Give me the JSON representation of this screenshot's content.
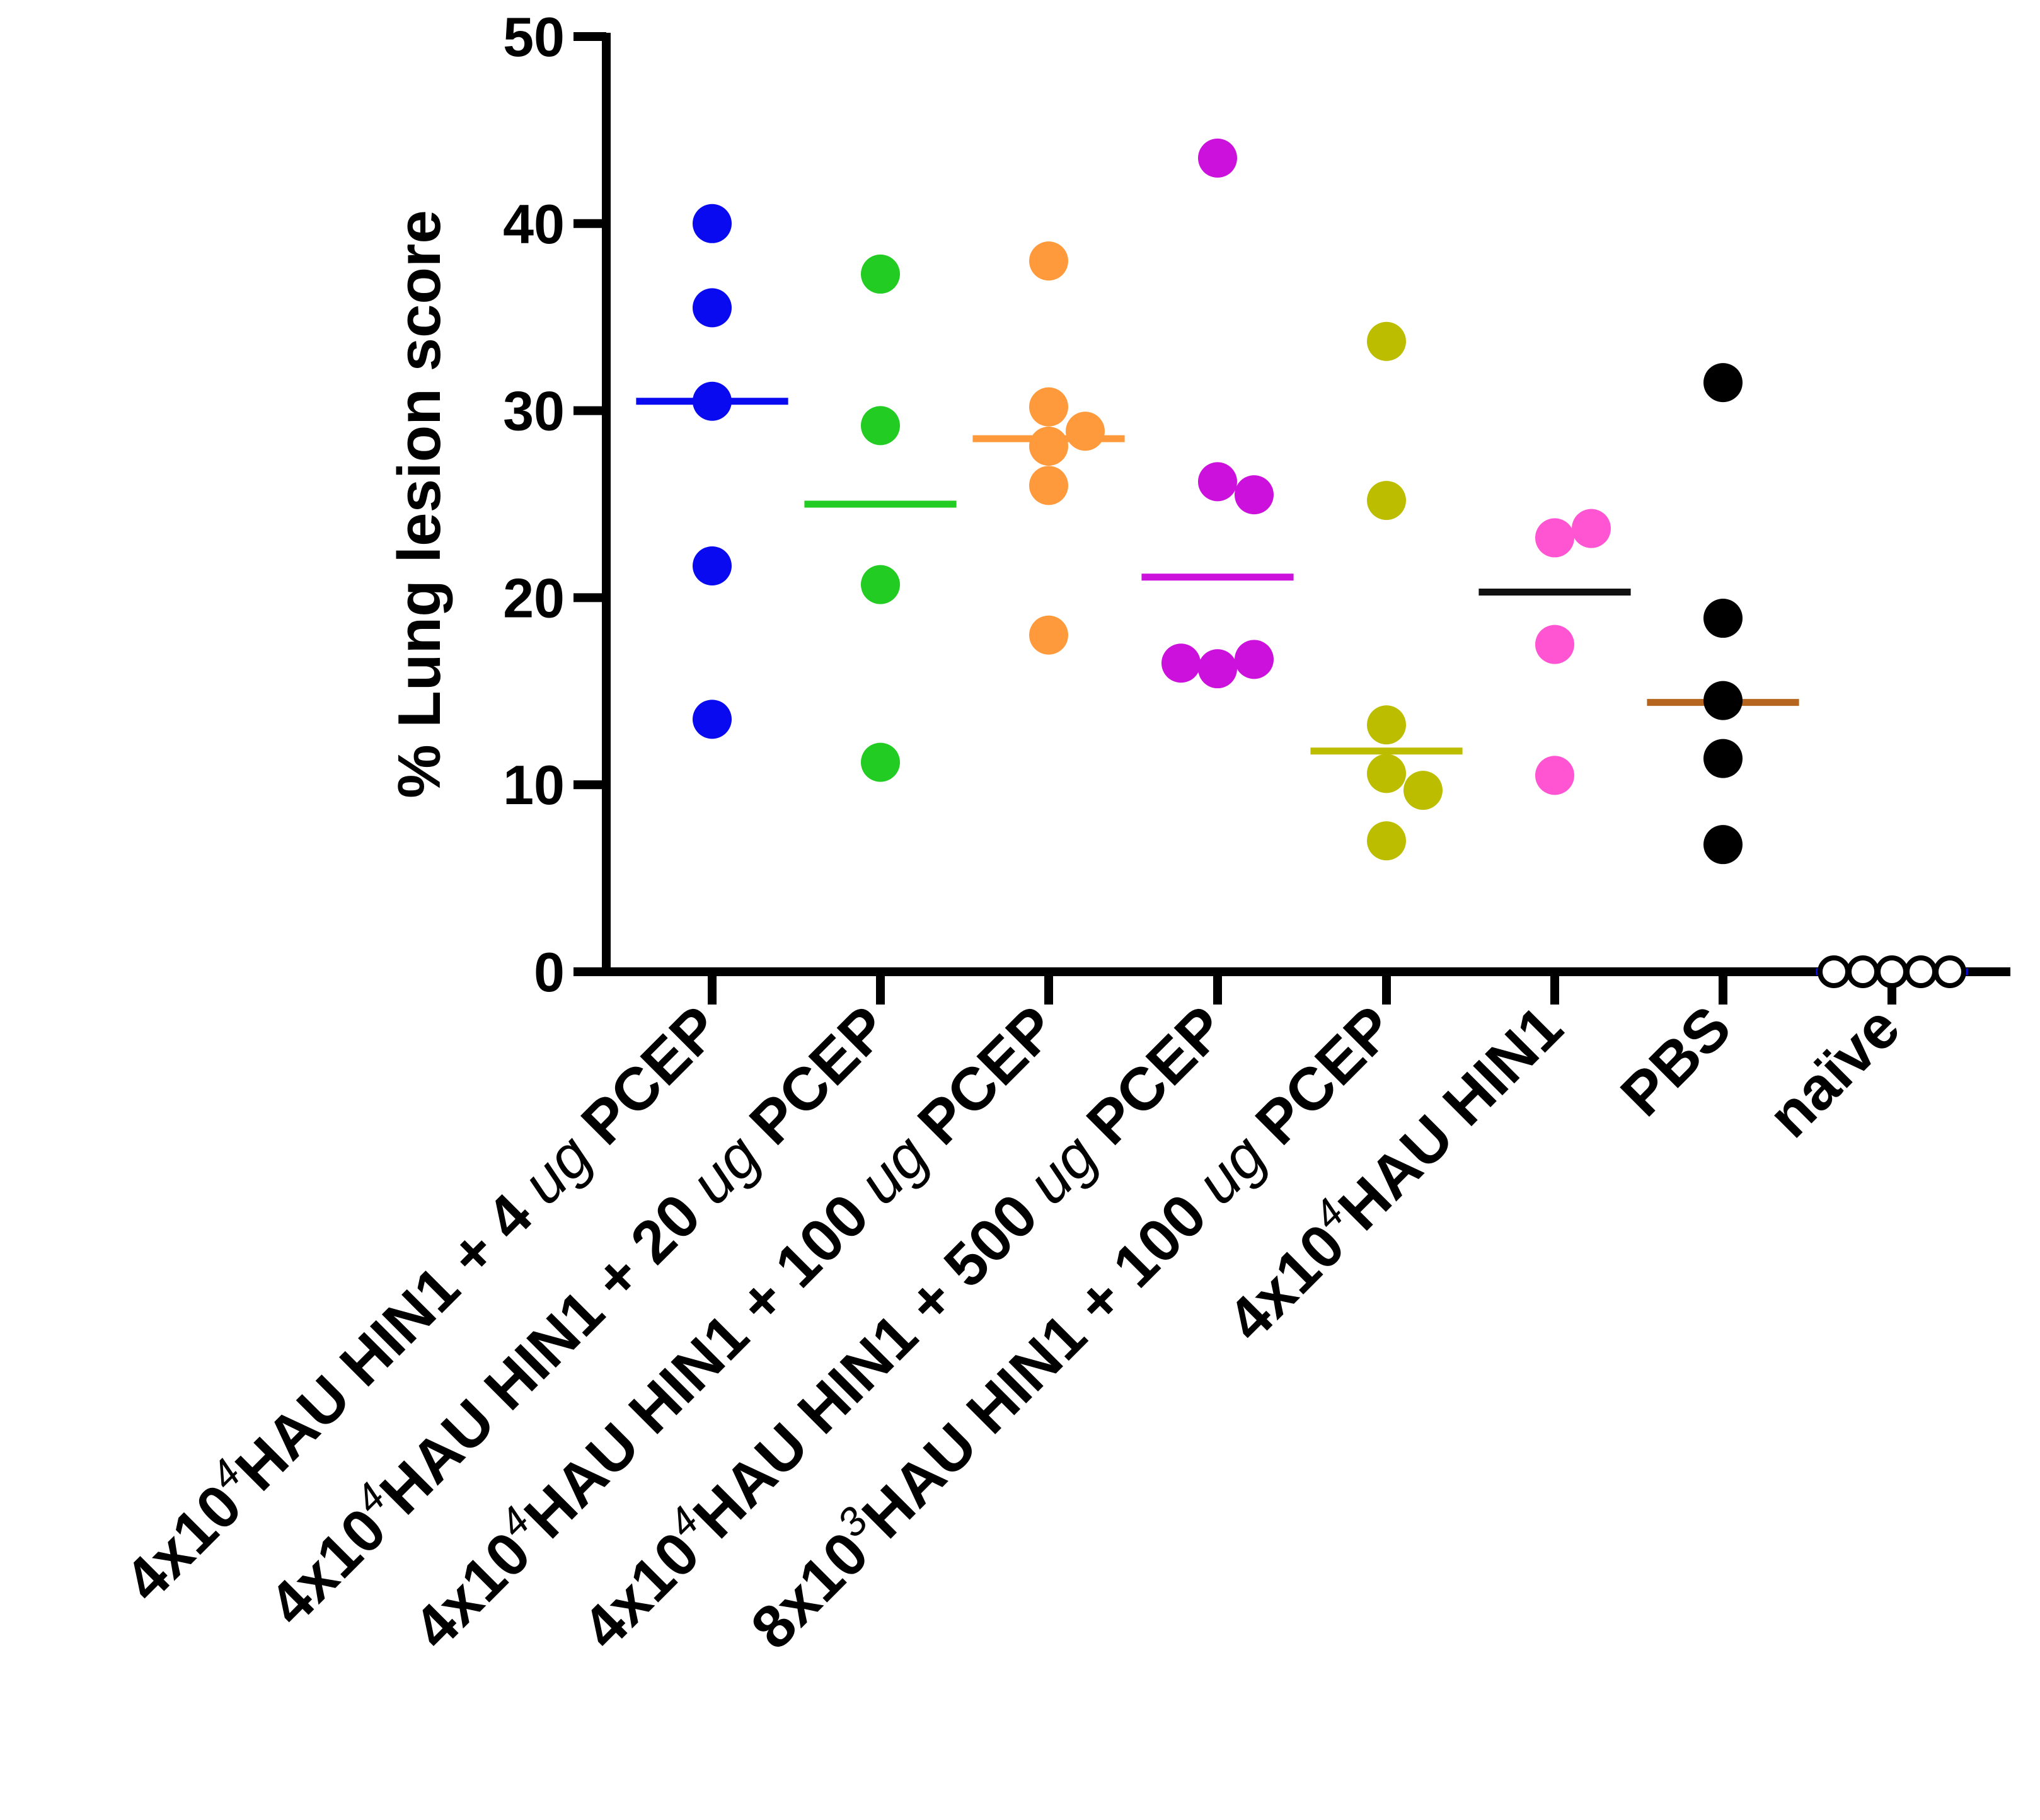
{
  "chart_data": {
    "type": "scatter",
    "ylabel": "% Lung lesion score",
    "xlabel": "",
    "ylim": [
      0,
      50
    ],
    "yticks": [
      0,
      10,
      20,
      30,
      40,
      50
    ],
    "grid": false,
    "categories": [
      {
        "prefix": "4x10",
        "sup": "4",
        "mid": "HAU HIN1 + 4 ",
        "unit": "ug",
        "suffix": " PCEP"
      },
      {
        "prefix": "4x10",
        "sup": "4",
        "mid": "HAU HIN1 + 20 ",
        "unit": "ug",
        "suffix": " PCEP"
      },
      {
        "prefix": "4x10",
        "sup": "4",
        "mid": "HAU HIN1 + 100 ",
        "unit": "ug",
        "suffix": " PCEP"
      },
      {
        "prefix": "4x10",
        "sup": "4",
        "mid": "HAU HIN1 + 500 ",
        "unit": "ug",
        "suffix": " PCEP"
      },
      {
        "prefix": "8x10",
        "sup": "3",
        "mid": "HAU HIN1 + 100 ",
        "unit": "ug",
        "suffix": " PCEP"
      },
      {
        "prefix": "4x10",
        "sup": "4",
        "mid": "HAU HIN1",
        "unit": "",
        "suffix": ""
      },
      {
        "prefix": "PBS",
        "sup": "",
        "mid": "",
        "unit": "",
        "suffix": ""
      },
      {
        "prefix": "naïve",
        "sup": "",
        "mid": "",
        "unit": "",
        "suffix": ""
      }
    ],
    "series": [
      {
        "name": "4x10^4 HAU HIN1 + 4 ug PCEP",
        "color": "#0a0af0",
        "mean_color": "#0a0af0",
        "hollow": false,
        "values": [
          40.0,
          35.5,
          30.5,
          21.7,
          13.5
        ],
        "mean": 30.5
      },
      {
        "name": "4x10^4 HAU HIN1 + 20 ug PCEP",
        "color": "#22cc22",
        "mean_color": "#22cc22",
        "hollow": false,
        "values": [
          37.3,
          29.2,
          20.7,
          11.2
        ],
        "mean": 25.0
      },
      {
        "name": "4x10^4 HAU HIN1 + 100 ug PCEP",
        "color": "#ff9a3c",
        "mean_color": "#ff9a3c",
        "hollow": false,
        "values": [
          38.0,
          30.2,
          28.1,
          28.9,
          26.0,
          18.0
        ],
        "mean": 28.5
      },
      {
        "name": "4x10^4 HAU HIN1 + 500 ug PCEP",
        "color": "#cc11dd",
        "mean_color": "#cc11dd",
        "hollow": false,
        "values": [
          43.5,
          26.2,
          25.5,
          16.2,
          16.7,
          16.5
        ],
        "mean": 21.1
      },
      {
        "name": "8x10^3 HAU HIN1 + 100 ug PCEP",
        "color": "#bdbd00",
        "mean_color": "#bdbd00",
        "hollow": false,
        "values": [
          33.7,
          25.2,
          13.2,
          10.6,
          9.7,
          7.0
        ],
        "mean": 11.8
      },
      {
        "name": "4x10^4 HAU HIN1",
        "color": "#ff55d2",
        "mean_color": "#111111",
        "hollow": false,
        "values": [
          23.2,
          23.7,
          17.5,
          10.5
        ],
        "mean": 20.3
      },
      {
        "name": "PBS",
        "color": "#000000",
        "mean_color": "#b5651d",
        "hollow": false,
        "values": [
          31.5,
          18.9,
          14.5,
          11.4,
          6.8
        ],
        "mean": 14.4
      },
      {
        "name": "naïve",
        "color": "#000000",
        "mean_color": "#0a0af0",
        "hollow": true,
        "values": [
          0,
          0,
          0,
          0,
          0
        ],
        "mean": 0
      }
    ]
  }
}
